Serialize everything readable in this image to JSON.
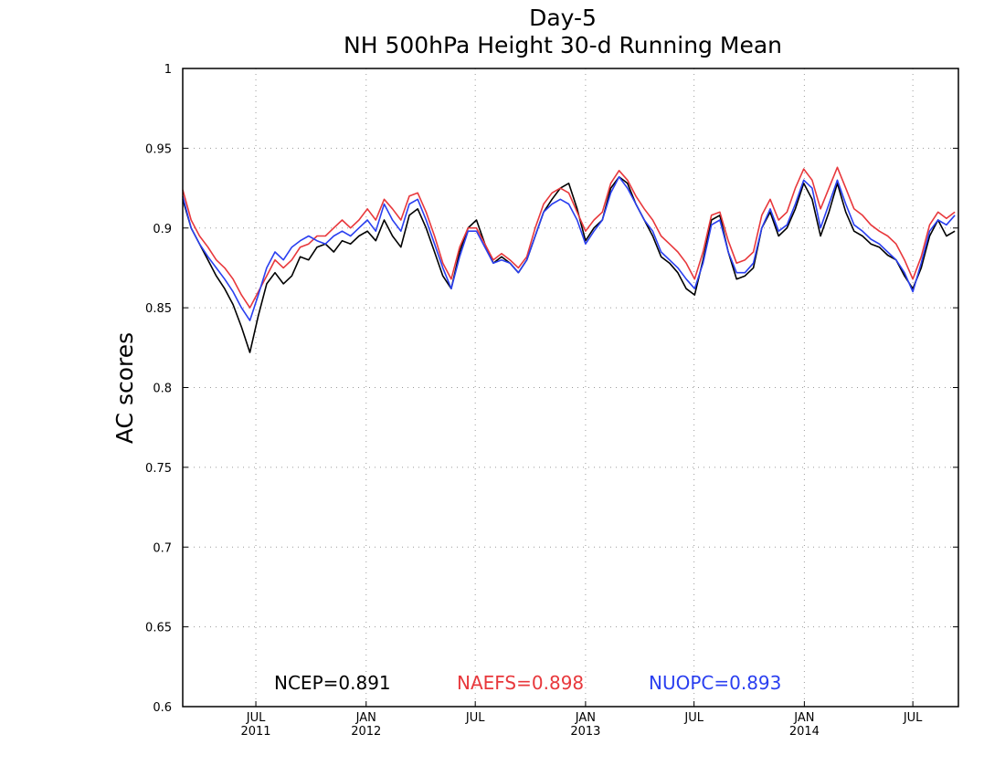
{
  "chart_data": {
    "type": "line",
    "title": "Day-5",
    "subtitle": "NH 500hPa Height 30-d Running Mean",
    "xlabel": "",
    "ylabel": "AC scores",
    "ylim": [
      0.6,
      1.0
    ],
    "xlim": [
      "2011-03-01",
      "2014-09-15"
    ],
    "y_ticks": [
      "0.6",
      "0.65",
      "0.7",
      "0.75",
      "0.8",
      "0.85",
      "0.9",
      "0.95",
      "1"
    ],
    "x_ticks": [
      {
        "date": "2011-07-01",
        "label": "JUL",
        "year": "2011"
      },
      {
        "date": "2012-01-01",
        "label": "JAN",
        "year": "2012"
      },
      {
        "date": "2012-07-01",
        "label": "JUL",
        "year": ""
      },
      {
        "date": "2013-01-01",
        "label": "JAN",
        "year": "2013"
      },
      {
        "date": "2013-07-01",
        "label": "JUL",
        "year": ""
      },
      {
        "date": "2014-01-01",
        "label": "JAN",
        "year": "2014"
      },
      {
        "date": "2014-07-01",
        "label": "JUL",
        "year": ""
      }
    ],
    "grid": true,
    "legend": [
      {
        "label": "NCEP=0.891",
        "color": "#000000"
      },
      {
        "label": "NAEFS=0.898",
        "color": "#e8383c"
      },
      {
        "label": "NUOPC=0.893",
        "color": "#2a3ff0"
      }
    ],
    "x": [
      "2011-03-01",
      "2011-03-15",
      "2011-03-29",
      "2011-04-12",
      "2011-04-26",
      "2011-05-10",
      "2011-05-24",
      "2011-06-07",
      "2011-06-21",
      "2011-07-05",
      "2011-07-19",
      "2011-08-02",
      "2011-08-16",
      "2011-08-30",
      "2011-09-13",
      "2011-09-27",
      "2011-10-11",
      "2011-10-25",
      "2011-11-08",
      "2011-11-22",
      "2011-12-06",
      "2011-12-20",
      "2012-01-03",
      "2012-01-17",
      "2012-01-31",
      "2012-02-14",
      "2012-02-28",
      "2012-03-13",
      "2012-03-27",
      "2012-04-10",
      "2012-04-24",
      "2012-05-08",
      "2012-05-22",
      "2012-06-05",
      "2012-06-19",
      "2012-07-03",
      "2012-07-17",
      "2012-07-31",
      "2012-08-14",
      "2012-08-28",
      "2012-09-11",
      "2012-09-25",
      "2012-10-09",
      "2012-10-23",
      "2012-11-06",
      "2012-11-20",
      "2012-12-04",
      "2012-12-18",
      "2013-01-01",
      "2013-01-15",
      "2013-01-29",
      "2013-02-12",
      "2013-02-26",
      "2013-03-12",
      "2013-03-26",
      "2013-04-09",
      "2013-04-23",
      "2013-05-07",
      "2013-05-21",
      "2013-06-04",
      "2013-06-18",
      "2013-07-02",
      "2013-07-16",
      "2013-07-30",
      "2013-08-13",
      "2013-08-27",
      "2013-09-10",
      "2013-09-24",
      "2013-10-08",
      "2013-10-22",
      "2013-11-05",
      "2013-11-19",
      "2013-12-03",
      "2013-12-17",
      "2013-12-31",
      "2014-01-14",
      "2014-01-28",
      "2014-02-11",
      "2014-02-25",
      "2014-03-11",
      "2014-03-25",
      "2014-04-08",
      "2014-04-22",
      "2014-05-06",
      "2014-05-20",
      "2014-06-03",
      "2014-06-17",
      "2014-07-01",
      "2014-07-15",
      "2014-07-29",
      "2014-08-12",
      "2014-08-26",
      "2014-09-09"
    ],
    "series": [
      {
        "name": "NCEP",
        "color": "#000000",
        "values": [
          0.918,
          0.9,
          0.89,
          0.88,
          0.87,
          0.862,
          0.852,
          0.838,
          0.822,
          0.845,
          0.865,
          0.872,
          0.865,
          0.87,
          0.882,
          0.88,
          0.888,
          0.89,
          0.885,
          0.892,
          0.89,
          0.895,
          0.898,
          0.892,
          0.905,
          0.895,
          0.888,
          0.908,
          0.912,
          0.9,
          0.885,
          0.87,
          0.862,
          0.885,
          0.9,
          0.905,
          0.89,
          0.878,
          0.882,
          0.878,
          0.872,
          0.88,
          0.895,
          0.91,
          0.918,
          0.925,
          0.928,
          0.912,
          0.892,
          0.9,
          0.905,
          0.925,
          0.932,
          0.928,
          0.915,
          0.905,
          0.895,
          0.882,
          0.878,
          0.872,
          0.862,
          0.858,
          0.88,
          0.905,
          0.908,
          0.885,
          0.868,
          0.87,
          0.875,
          0.9,
          0.91,
          0.895,
          0.9,
          0.912,
          0.928,
          0.918,
          0.895,
          0.91,
          0.928,
          0.91,
          0.898,
          0.895,
          0.89,
          0.888,
          0.883,
          0.88,
          0.87,
          0.862,
          0.875,
          0.895,
          0.905,
          0.895,
          0.898
        ]
      },
      {
        "name": "NAEFS",
        "color": "#e8383c",
        "values": [
          0.924,
          0.905,
          0.895,
          0.888,
          0.88,
          0.875,
          0.868,
          0.858,
          0.85,
          0.86,
          0.87,
          0.88,
          0.875,
          0.88,
          0.888,
          0.89,
          0.895,
          0.895,
          0.9,
          0.905,
          0.9,
          0.905,
          0.912,
          0.905,
          0.918,
          0.912,
          0.905,
          0.92,
          0.922,
          0.91,
          0.895,
          0.878,
          0.868,
          0.888,
          0.9,
          0.9,
          0.89,
          0.88,
          0.884,
          0.88,
          0.875,
          0.882,
          0.9,
          0.915,
          0.922,
          0.925,
          0.922,
          0.91,
          0.898,
          0.905,
          0.91,
          0.928,
          0.936,
          0.93,
          0.92,
          0.912,
          0.905,
          0.895,
          0.89,
          0.885,
          0.878,
          0.868,
          0.885,
          0.908,
          0.91,
          0.892,
          0.878,
          0.88,
          0.885,
          0.908,
          0.918,
          0.905,
          0.91,
          0.925,
          0.937,
          0.93,
          0.912,
          0.925,
          0.938,
          0.925,
          0.912,
          0.908,
          0.902,
          0.898,
          0.895,
          0.89,
          0.88,
          0.868,
          0.882,
          0.902,
          0.91,
          0.906,
          0.91
        ]
      },
      {
        "name": "NUOPC",
        "color": "#2a3ff0",
        "values": [
          0.92,
          0.9,
          0.89,
          0.882,
          0.875,
          0.868,
          0.86,
          0.85,
          0.842,
          0.858,
          0.875,
          0.885,
          0.88,
          0.888,
          0.892,
          0.895,
          0.892,
          0.89,
          0.895,
          0.898,
          0.895,
          0.9,
          0.905,
          0.898,
          0.915,
          0.905,
          0.898,
          0.915,
          0.918,
          0.905,
          0.89,
          0.875,
          0.862,
          0.882,
          0.898,
          0.898,
          0.888,
          0.878,
          0.88,
          0.878,
          0.872,
          0.88,
          0.895,
          0.91,
          0.915,
          0.918,
          0.915,
          0.905,
          0.89,
          0.898,
          0.905,
          0.922,
          0.932,
          0.925,
          0.915,
          0.905,
          0.898,
          0.885,
          0.88,
          0.875,
          0.868,
          0.862,
          0.878,
          0.902,
          0.905,
          0.885,
          0.872,
          0.872,
          0.878,
          0.9,
          0.912,
          0.898,
          0.902,
          0.915,
          0.93,
          0.925,
          0.9,
          0.915,
          0.93,
          0.915,
          0.902,
          0.898,
          0.893,
          0.89,
          0.885,
          0.88,
          0.872,
          0.86,
          0.878,
          0.898,
          0.905,
          0.902,
          0.908
        ]
      }
    ]
  }
}
